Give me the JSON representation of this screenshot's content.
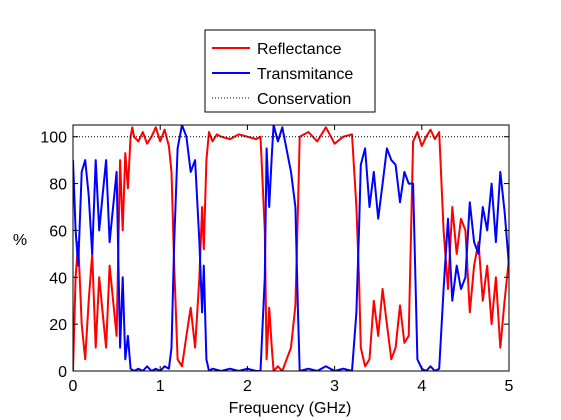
{
  "chart_data": {
    "type": "line",
    "title": "",
    "xlabel": "Frequency (GHz)",
    "ylabel": "%",
    "xlim": [
      0,
      5
    ],
    "ylim": [
      0,
      105
    ],
    "xticks": [
      "0",
      "1",
      "2",
      "3",
      "4",
      "5"
    ],
    "yticks": [
      "0",
      "20",
      "40",
      "60",
      "80",
      "100"
    ],
    "grid": false,
    "legend_position": "top-center",
    "series": [
      {
        "name": "Reflectance",
        "color": "#ff0000",
        "style": "solid",
        "x": [
          0,
          0.03,
          0.06,
          0.1,
          0.14,
          0.18,
          0.22,
          0.26,
          0.3,
          0.34,
          0.38,
          0.42,
          0.46,
          0.5,
          0.54,
          0.57,
          0.6,
          0.63,
          0.66,
          0.68,
          0.7,
          0.75,
          0.8,
          0.85,
          0.9,
          0.95,
          1.0,
          1.05,
          1.1,
          1.13,
          1.16,
          1.2,
          1.25,
          1.3,
          1.35,
          1.4,
          1.45,
          1.48,
          1.5,
          1.53,
          1.56,
          1.6,
          1.65,
          1.7,
          1.8,
          1.9,
          2.0,
          2.1,
          2.15,
          2.2,
          2.22,
          2.25,
          2.28,
          2.3,
          2.35,
          2.4,
          2.5,
          2.55,
          2.58,
          2.6,
          2.7,
          2.8,
          2.9,
          3.0,
          3.1,
          3.2,
          3.25,
          3.28,
          3.3,
          3.35,
          3.4,
          3.45,
          3.5,
          3.55,
          3.6,
          3.65,
          3.7,
          3.75,
          3.8,
          3.85,
          3.9,
          3.95,
          4.0,
          4.05,
          4.1,
          4.15,
          4.2,
          4.25,
          4.3,
          4.35,
          4.4,
          4.45,
          4.5,
          4.55,
          4.6,
          4.65,
          4.7,
          4.75,
          4.8,
          4.85,
          4.9,
          4.95,
          5.0
        ],
        "values": [
          0,
          40,
          55,
          20,
          5,
          30,
          50,
          10,
          40,
          25,
          10,
          45,
          30,
          15,
          90,
          60,
          93,
          78,
          100,
          104,
          100,
          98,
          102,
          97,
          100,
          104,
          98,
          103,
          96,
          85,
          45,
          5,
          2,
          15,
          27,
          10,
          40,
          70,
          52,
          90,
          102,
          98,
          101,
          100,
          99,
          101,
          100,
          99,
          100,
          60,
          5,
          27,
          10,
          0,
          2,
          0,
          10,
          28,
          70,
          100,
          102,
          98,
          104,
          97,
          100,
          101,
          70,
          40,
          10,
          2,
          5,
          30,
          15,
          35,
          20,
          5,
          10,
          28,
          12,
          15,
          98,
          102,
          96,
          100,
          103,
          99,
          102,
          60,
          35,
          70,
          50,
          65,
          60,
          25,
          45,
          55,
          30,
          45,
          20,
          40,
          10,
          30,
          48
        ]
      },
      {
        "name": "Transmitance",
        "color": "#0000ff",
        "style": "solid",
        "x": [
          0,
          0.03,
          0.06,
          0.1,
          0.14,
          0.18,
          0.22,
          0.26,
          0.3,
          0.34,
          0.38,
          0.42,
          0.46,
          0.5,
          0.54,
          0.57,
          0.6,
          0.63,
          0.66,
          0.7,
          0.75,
          0.8,
          0.85,
          0.9,
          0.95,
          1.0,
          1.05,
          1.1,
          1.13,
          1.16,
          1.2,
          1.25,
          1.3,
          1.35,
          1.4,
          1.45,
          1.48,
          1.5,
          1.53,
          1.56,
          1.6,
          1.7,
          1.8,
          1.9,
          2.0,
          2.1,
          2.15,
          2.2,
          2.22,
          2.25,
          2.28,
          2.3,
          2.35,
          2.4,
          2.5,
          2.55,
          2.58,
          2.6,
          2.7,
          2.8,
          2.9,
          3.0,
          3.1,
          3.2,
          3.25,
          3.28,
          3.3,
          3.35,
          3.4,
          3.45,
          3.5,
          3.55,
          3.6,
          3.65,
          3.7,
          3.75,
          3.8,
          3.85,
          3.9,
          3.95,
          4.0,
          4.05,
          4.1,
          4.15,
          4.2,
          4.25,
          4.3,
          4.35,
          4.4,
          4.45,
          4.5,
          4.55,
          4.6,
          4.65,
          4.7,
          4.75,
          4.8,
          4.85,
          4.9,
          4.95,
          5.0
        ],
        "values": [
          90,
          60,
          45,
          85,
          90,
          75,
          50,
          90,
          60,
          75,
          90,
          55,
          70,
          85,
          10,
          40,
          5,
          15,
          1,
          0,
          1,
          0,
          2,
          0,
          1,
          0,
          2,
          1,
          10,
          55,
          95,
          105,
          100,
          85,
          90,
          55,
          25,
          45,
          5,
          0,
          1,
          0,
          1,
          0,
          1,
          0,
          0,
          40,
          95,
          70,
          92,
          105,
          98,
          104,
          85,
          70,
          25,
          0,
          1,
          0,
          2,
          0,
          1,
          0,
          25,
          60,
          88,
          95,
          70,
          85,
          65,
          80,
          95,
          90,
          88,
          72,
          85,
          80,
          80,
          5,
          1,
          0,
          2,
          0,
          1,
          35,
          65,
          30,
          45,
          35,
          40,
          72,
          55,
          50,
          70,
          60,
          80,
          55,
          85,
          68,
          45
        ]
      },
      {
        "name": "Conservation",
        "color": "#000000",
        "style": "dotted",
        "x": [
          0,
          0.25,
          0.5,
          0.75,
          1.0,
          1.25,
          1.5,
          1.75,
          2.0,
          2.25,
          2.5,
          2.75,
          3.0,
          3.25,
          3.5,
          3.75,
          4.0,
          4.25,
          4.5,
          4.75,
          5.0
        ],
        "values": [
          100,
          100,
          100,
          100,
          100,
          100,
          100,
          100,
          100,
          100,
          100,
          100,
          100,
          100,
          100,
          100,
          100,
          100,
          100,
          100,
          100
        ]
      }
    ]
  }
}
